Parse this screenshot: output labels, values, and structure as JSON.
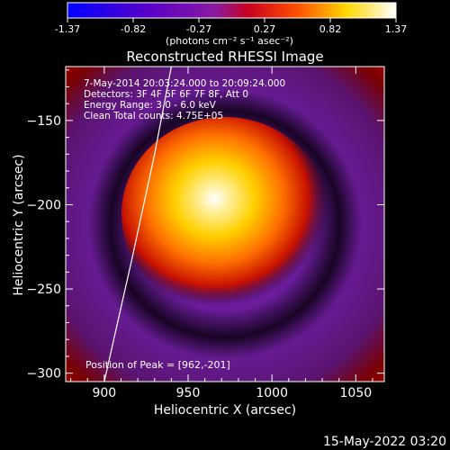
{
  "colorbar": {
    "ticks": [
      "-1.37",
      "-0.82",
      "-0.27",
      "0.27",
      "0.82",
      "1.37"
    ],
    "units_label": "(photons cm⁻² s⁻¹ asec⁻²)"
  },
  "chart_data": {
    "type": "heatmap",
    "title": "Reconstructed RHESSI Image",
    "xlabel": "Heliocentric X (arcsec)",
    "ylabel": "Heliocentric Y (arcsec)",
    "xlim": [
      877,
      1067
    ],
    "ylim": [
      -305,
      -118
    ],
    "x_ticks": [
      900,
      950,
      1000,
      1050
    ],
    "y_ticks": [
      -150,
      -200,
      -250,
      -300
    ],
    "color_range": [
      -1.37,
      1.37
    ],
    "colormap": "blue-purple-red-yellow-white",
    "annotations": [
      " 7-May-2014 20:03:24.000 to 20:09:24.000",
      "Detectors: 3F 4F 5F 6F 7F 8F, Att 0",
      "Energy Range: 3.0 - 6.0 keV",
      "Clean     Total counts: 4.75E+05"
    ],
    "peak_text": "Position of Peak = [962,-201]",
    "peak": [
      962,
      -201
    ],
    "limb": [
      [
        940,
        -118
      ],
      [
        930,
        -170
      ],
      [
        917,
        -230
      ],
      [
        900,
        -305
      ]
    ]
  },
  "footer": {
    "date": "15-May-2022 03:20"
  }
}
